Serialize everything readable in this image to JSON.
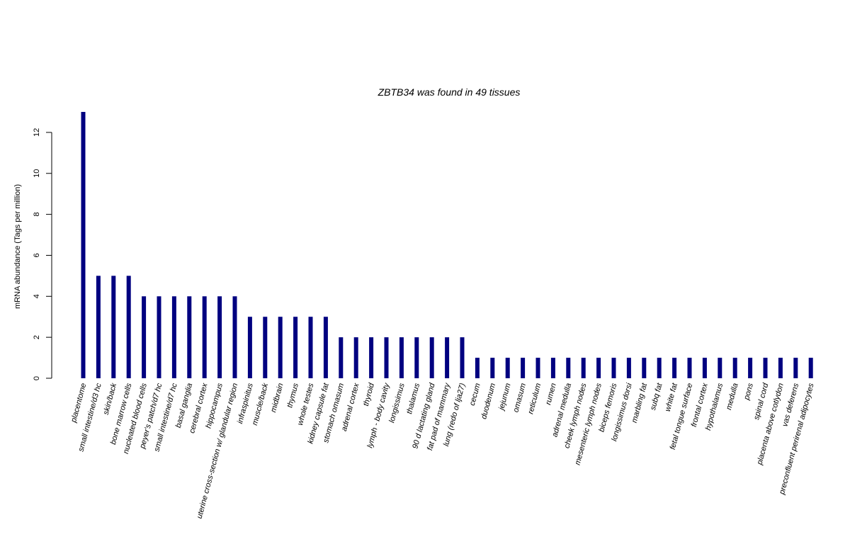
{
  "chart_data": {
    "type": "bar",
    "title": "ZBTB34  was found in  49  tissues",
    "xlabel": "",
    "ylabel": "mRNA abundance (Tags per million)",
    "ylim": [
      0,
      13
    ],
    "yticks": [
      0,
      2,
      4,
      6,
      8,
      10,
      12
    ],
    "bar_color": "#000080",
    "grid": false,
    "categories": [
      "placentome",
      "small intestine/d3 hc",
      "skin/back",
      "bone marrow cells",
      "nucleated blood cells",
      "peyer's patch/d7 hc",
      "small intestine/d7 hc",
      "basal ganglia",
      "cerebral cortex",
      "hippocampus",
      "uterine cross-section w/ glandular region",
      "infraspinitus",
      "muscle/back",
      "midbrain",
      "thymus",
      "whole testes",
      "kidney capsule fat",
      "stomach omasum",
      "adrenal cortex",
      "thyroid",
      "lymph - body cavity",
      "longissimus",
      "thalamus",
      "90 d lactating gland",
      "fat pad of mammary",
      "lung (redo of lja27)",
      "cecum",
      "duodenum",
      "jejunum",
      "omasum",
      "reticulum",
      "rumen",
      "adrenal medulla",
      "cheek lymph nodes",
      "mesenteric lymph nodes",
      "biceps femoris",
      "longissimus dorsi",
      "marbling fat",
      "subq fat",
      "white fat",
      "fetal tongue surface",
      "frontal cortex",
      "hypothalamus",
      "medulla",
      "pons",
      "spinal cord",
      "placenta above cotlydon",
      "vas deferens",
      "preconfluent perirenal adipocytes"
    ],
    "values": [
      13,
      5,
      5,
      5,
      4,
      4,
      4,
      4,
      4,
      4,
      4,
      3,
      3,
      3,
      3,
      3,
      3,
      2,
      2,
      2,
      2,
      2,
      2,
      2,
      2,
      2,
      1,
      1,
      1,
      1,
      1,
      1,
      1,
      1,
      1,
      1,
      1,
      1,
      1,
      1,
      1,
      1,
      1,
      1,
      1,
      1,
      1,
      1,
      1
    ]
  }
}
